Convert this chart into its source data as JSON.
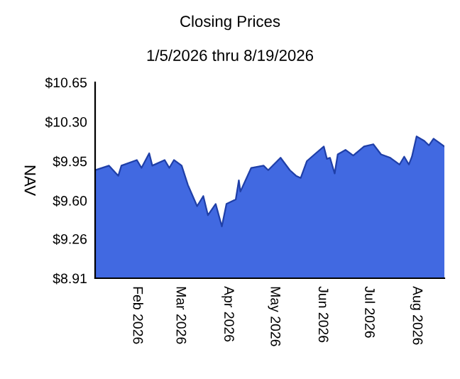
{
  "chart_data": {
    "type": "area",
    "title": "Closing Prices",
    "subtitle": "1/5/2026 thru 8/19/2026",
    "ylabel": "NAV",
    "x": [
      "2026-01-05",
      "2026-01-14",
      "2026-01-20",
      "2026-01-22",
      "2026-02-01",
      "2026-02-04",
      "2026-02-09",
      "2026-02-11",
      "2026-02-19",
      "2026-02-22",
      "2026-02-25",
      "2026-03-02",
      "2026-03-06",
      "2026-03-12",
      "2026-03-16",
      "2026-03-19",
      "2026-03-24",
      "2026-03-28",
      "2026-03-31",
      "2026-04-06",
      "2026-04-08",
      "2026-04-09",
      "2026-04-16",
      "2026-04-24",
      "2026-04-27",
      "2026-05-05",
      "2026-05-11",
      "2026-05-15",
      "2026-05-18",
      "2026-05-22",
      "2026-05-27",
      "2026-06-02",
      "2026-06-04",
      "2026-06-06",
      "2026-06-09",
      "2026-06-11",
      "2026-06-16",
      "2026-06-21",
      "2026-06-28",
      "2026-07-04",
      "2026-07-09",
      "2026-07-15",
      "2026-07-21",
      "2026-07-24",
      "2026-07-27",
      "2026-07-29",
      "2026-08-01",
      "2026-08-06",
      "2026-08-09",
      "2026-08-12",
      "2026-08-19"
    ],
    "series": [
      {
        "color": "#4169e1",
        "values": [
          9.87,
          9.91,
          9.82,
          9.91,
          9.96,
          9.89,
          10.02,
          9.91,
          9.96,
          9.89,
          9.96,
          9.91,
          9.74,
          9.55,
          9.64,
          9.47,
          9.57,
          9.37,
          9.57,
          9.61,
          9.78,
          9.68,
          9.89,
          9.91,
          9.87,
          9.98,
          9.87,
          9.82,
          9.8,
          9.95,
          10.01,
          10.08,
          9.97,
          9.98,
          9.84,
          10.01,
          10.05,
          10.0,
          10.08,
          10.1,
          10.01,
          9.98,
          9.92,
          9.99,
          9.92,
          9.99,
          10.17,
          10.13,
          10.09,
          10.15,
          10.08
        ]
      }
    ],
    "xlim": [
      "2026-01-05",
      "2026-08-19"
    ],
    "xticks": [
      {
        "value": "2026-02-01",
        "label": "Feb 2026"
      },
      {
        "value": "2026-03-01",
        "label": "Mar 2026"
      },
      {
        "value": "2026-04-01",
        "label": "Apr 2026"
      },
      {
        "value": "2026-05-01",
        "label": "May 2026"
      },
      {
        "value": "2026-06-01",
        "label": "Jun 2026"
      },
      {
        "value": "2026-07-01",
        "label": "Jul 2026"
      },
      {
        "value": "2026-08-01",
        "label": "Aug 2026"
      }
    ],
    "ylim": [
      8.91,
      10.65
    ],
    "yticks": [
      {
        "value": 8.91,
        "label": "$8.91"
      },
      {
        "value": 9.26,
        "label": "$9.26"
      },
      {
        "value": 9.6,
        "label": "$9.60"
      },
      {
        "value": 9.95,
        "label": "$9.95"
      },
      {
        "value": 10.3,
        "label": "$10.30"
      },
      {
        "value": 10.65,
        "label": "$10.65"
      }
    ],
    "grid": false
  }
}
